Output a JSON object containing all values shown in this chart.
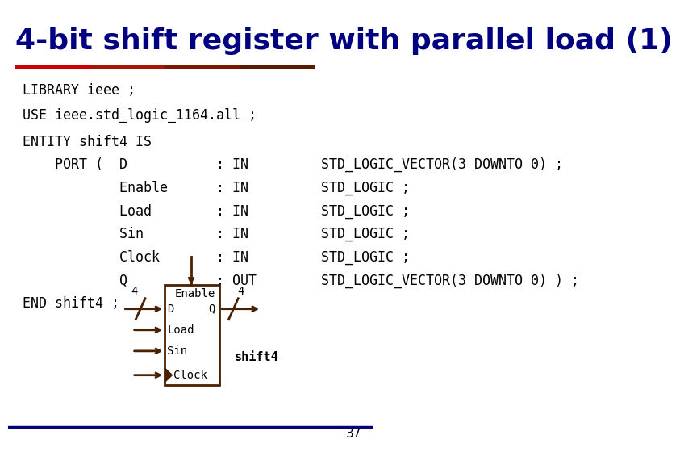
{
  "title": "4-bit shift register with parallel load (1)",
  "title_color": "#000080",
  "title_fontsize": 26,
  "separator_colors": [
    "#cc0000",
    "#aa1500",
    "#7a1800",
    "#5a1a00",
    "#4a2000"
  ],
  "bg_color": "#ffffff",
  "code_color": "#000000",
  "code_fontsize": 12,
  "code_font": "monospace",
  "code_lines": [
    "LIBRARY ieee ;",
    "USE ieee.std_logic_1164.all ;"
  ],
  "code2_lines": [
    "ENTITY shift4 IS",
    "    PORT (  D           : IN         STD_LOGIC_VECTOR(3 DOWNTO 0) ;",
    "            Enable      : IN         STD_LOGIC ;",
    "            Load        : IN         STD_LOGIC ;",
    "            Sin         : IN         STD_LOGIC ;",
    "            Clock       : IN         STD_LOGIC ;",
    "            Q           : OUT        STD_LOGIC_VECTOR(3 DOWNTO 0) ) ;",
    "END shift4 ;"
  ],
  "box_color": "#4a2000",
  "arrow_color": "#4a2000",
  "footer_color": "#000080",
  "page_num": "37"
}
